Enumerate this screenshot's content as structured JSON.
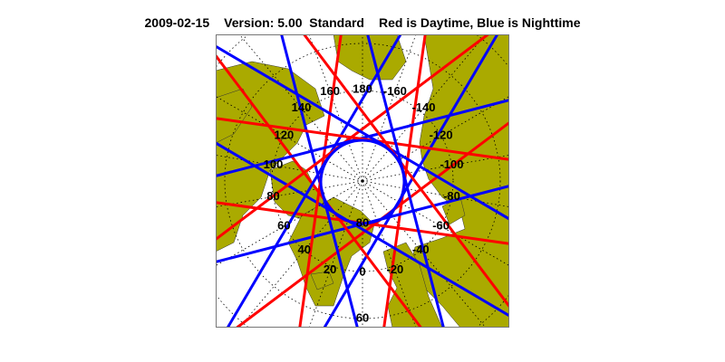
{
  "title": {
    "date": "2009-02-15",
    "version": "Version: 5.00  Standard",
    "legend": "Red is Daytime, Blue is Nighttime"
  },
  "map": {
    "projection": "north polar stereographic",
    "colors": {
      "land": "#aaaa00",
      "ocean": "#ffffff",
      "day_track": "#ff0000",
      "night_track": "#0000ff",
      "grid": "#000000"
    },
    "longitude_labels": [
      "180",
      "-160",
      "160",
      "-140",
      "140",
      "-120",
      "120",
      "-100",
      "100",
      "-80",
      "80",
      "-60",
      "60",
      "-40",
      "40",
      "-20",
      "20",
      "0"
    ],
    "latitude_labels": [
      "80",
      "60"
    ]
  }
}
